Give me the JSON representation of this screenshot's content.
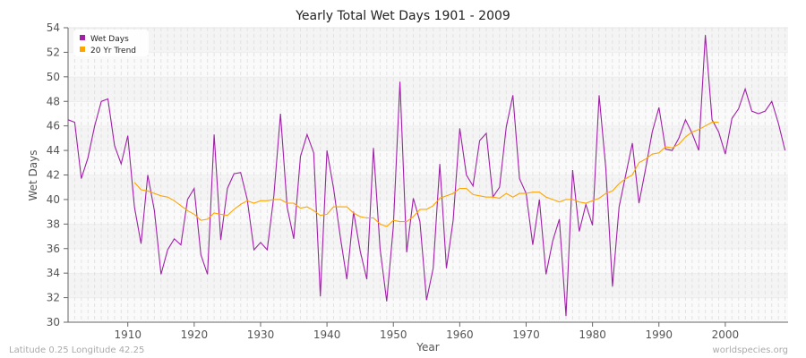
{
  "chart_data": {
    "type": "line",
    "title": "Yearly Total Wet Days 1901 - 2009",
    "xlabel": "Year",
    "ylabel": "Wet Days",
    "xlim": [
      1901,
      2009
    ],
    "ylim": [
      30,
      54
    ],
    "x_ticks": [
      1910,
      1920,
      1930,
      1940,
      1950,
      1960,
      1970,
      1980,
      1990,
      2000
    ],
    "y_ticks": [
      30,
      32,
      34,
      36,
      38,
      40,
      42,
      44,
      46,
      48,
      50,
      52,
      54
    ],
    "grid": true,
    "legend_placement": "top-left",
    "series": [
      {
        "name": "Wet Days",
        "color": "#a020a8",
        "x_start": 1901,
        "values": [
          46.5,
          46.3,
          41.7,
          43.4,
          46.0,
          48.0,
          48.2,
          44.4,
          42.9,
          45.2,
          39.4,
          36.4,
          42.0,
          39.1,
          33.9,
          35.9,
          36.8,
          36.3,
          40.0,
          40.9,
          35.5,
          33.9,
          45.3,
          36.7,
          40.9,
          42.1,
          42.2,
          40.0,
          35.9,
          36.5,
          35.9,
          40.3,
          47.0,
          39.4,
          36.8,
          43.5,
          45.3,
          43.8,
          32.1,
          44.0,
          40.9,
          37.0,
          33.5,
          39.0,
          35.8,
          33.5,
          44.2,
          36.0,
          31.7,
          37.8,
          49.6,
          35.7,
          40.1,
          38.2,
          31.8,
          34.4,
          42.9,
          34.4,
          38.3,
          45.8,
          42.0,
          41.1,
          44.8,
          45.4,
          40.2,
          41.0,
          45.9,
          48.5,
          41.7,
          40.5,
          36.3,
          40.0,
          33.9,
          36.6,
          38.4,
          30.5,
          42.4,
          37.4,
          39.6,
          37.9,
          48.5,
          42.5,
          32.9,
          39.4,
          42.0,
          44.6,
          39.7,
          42.5,
          45.5,
          47.5,
          44.1,
          44.0,
          45.0,
          46.5,
          45.4,
          44.0,
          53.4,
          46.5,
          45.5,
          43.7,
          46.6,
          47.4,
          49.0,
          47.2,
          47.0,
          47.2,
          48.0,
          46.2,
          44.0
        ]
      },
      {
        "name": "20 Yr Trend",
        "color": "#ffa500",
        "x_start": 1911,
        "values": [
          41.4,
          40.8,
          40.7,
          40.5,
          40.3,
          40.2,
          39.9,
          39.5,
          39.1,
          38.8,
          38.3,
          38.4,
          38.9,
          38.8,
          38.7,
          39.2,
          39.6,
          39.9,
          39.7,
          39.9,
          39.9,
          40.0,
          40.0,
          39.7,
          39.7,
          39.3,
          39.4,
          39.1,
          38.7,
          38.8,
          39.4,
          39.4,
          39.4,
          38.9,
          38.6,
          38.5,
          38.5,
          38.0,
          37.8,
          38.3,
          38.2,
          38.2,
          38.6,
          39.2,
          39.2,
          39.5,
          40.1,
          40.3,
          40.5,
          40.9,
          40.9,
          40.4,
          40.3,
          40.2,
          40.2,
          40.1,
          40.5,
          40.2,
          40.5,
          40.5,
          40.6,
          40.6,
          40.2,
          40.0,
          39.8,
          40.0,
          40.0,
          39.8,
          39.7,
          39.9,
          40.1,
          40.5,
          40.7,
          41.3,
          41.7,
          42.0,
          43.0,
          43.3,
          43.7,
          43.8,
          44.3,
          44.2,
          44.5,
          45.1,
          45.5,
          45.7,
          46.0,
          46.3,
          46.3
        ]
      }
    ]
  },
  "footer": {
    "left": "Latitude 0.25 Longitude 42.25",
    "right": "worldspecies.org"
  }
}
